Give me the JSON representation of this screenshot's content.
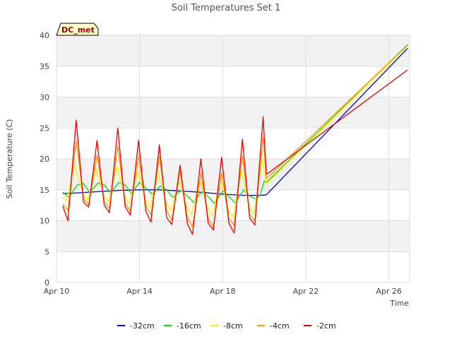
{
  "chart_data": {
    "type": "line",
    "title": "Soil Temperatures Set 1",
    "xlabel": "Time",
    "ylabel": "Soil Temperature (C)",
    "site_label": "DC_met",
    "xlim": [
      0,
      17
    ],
    "ylim": [
      0,
      40
    ],
    "x_unit": "days since Apr 10",
    "x_ticks": [
      {
        "value": 0,
        "label": "Apr 10"
      },
      {
        "value": 4,
        "label": "Apr 14"
      },
      {
        "value": 8,
        "label": "Apr 18"
      },
      {
        "value": 12,
        "label": "Apr 22"
      },
      {
        "value": 16,
        "label": "Apr 26"
      }
    ],
    "y_ticks": [
      0,
      5,
      10,
      15,
      20,
      25,
      30,
      35,
      40
    ],
    "legend_position": "bottom-center",
    "grid": true,
    "series": [
      {
        "name": "-32cm",
        "color": "#0000cc",
        "x": [
          0.3,
          1.0,
          2.0,
          3.0,
          4.0,
          5.0,
          6.0,
          7.0,
          8.0,
          9.0,
          9.8,
          10.1,
          16.9
        ],
        "y": [
          14.4,
          14.5,
          14.7,
          14.9,
          15.0,
          15.0,
          14.8,
          14.6,
          14.3,
          14.1,
          14.1,
          14.2,
          37.9
        ]
      },
      {
        "name": "-16cm",
        "color": "#00dd00",
        "x": [
          0.3,
          0.6,
          1.0,
          1.3,
          1.6,
          2.0,
          2.3,
          2.6,
          3.0,
          3.3,
          3.6,
          4.0,
          4.3,
          4.6,
          5.0,
          5.3,
          5.6,
          6.0,
          6.3,
          6.6,
          7.0,
          7.3,
          7.6,
          8.0,
          8.3,
          8.6,
          9.0,
          9.3,
          9.6,
          9.8,
          10.0,
          10.1,
          16.9
        ],
        "y": [
          14.6,
          13.8,
          15.8,
          16.0,
          14.6,
          16.1,
          15.8,
          14.5,
          16.2,
          15.8,
          14.4,
          16.2,
          15.3,
          14.3,
          15.6,
          15.0,
          13.8,
          14.9,
          14.0,
          13.0,
          14.7,
          13.9,
          12.8,
          14.8,
          13.9,
          12.9,
          15.0,
          14.0,
          13.5,
          14.2,
          16.4,
          16.2,
          38.5
        ]
      },
      {
        "name": "-8cm",
        "color": "#ffee00",
        "x": [
          0.3,
          0.5,
          0.85,
          1.3,
          1.5,
          1.9,
          2.3,
          2.5,
          2.9,
          3.3,
          3.5,
          3.9,
          4.3,
          4.5,
          4.9,
          5.3,
          5.5,
          5.9,
          6.3,
          6.5,
          6.9,
          7.3,
          7.5,
          7.9,
          8.3,
          8.5,
          8.9,
          9.3,
          9.5,
          9.9,
          10.1,
          16.9
        ],
        "y": [
          13.8,
          13.2,
          19.0,
          14.3,
          13.3,
          18.3,
          14.0,
          13.0,
          18.8,
          13.8,
          12.8,
          18.0,
          13.4,
          12.3,
          17.6,
          12.8,
          11.6,
          16.4,
          12.0,
          11.0,
          16.6,
          11.8,
          10.8,
          16.8,
          11.6,
          10.6,
          18.2,
          12.0,
          11.0,
          20.0,
          16.0,
          38.4
        ]
      },
      {
        "name": "-4cm",
        "color": "#ff9900",
        "x": [
          0.3,
          0.55,
          0.95,
          1.3,
          1.55,
          1.95,
          2.3,
          2.55,
          2.95,
          3.3,
          3.55,
          3.95,
          4.3,
          4.55,
          4.95,
          5.3,
          5.55,
          5.95,
          6.3,
          6.55,
          6.95,
          7.3,
          7.55,
          7.95,
          8.3,
          8.55,
          8.95,
          9.3,
          9.55,
          9.95,
          10.1,
          16.9
        ],
        "y": [
          12.7,
          11.6,
          23.0,
          13.6,
          12.6,
          20.6,
          13.1,
          12.0,
          22.0,
          13.0,
          11.5,
          20.5,
          12.5,
          10.9,
          20.5,
          11.6,
          10.1,
          18.0,
          10.6,
          9.0,
          17.6,
          10.4,
          9.0,
          17.8,
          10.4,
          9.3,
          20.6,
          11.0,
          10.0,
          23.5,
          16.8,
          38.4
        ]
      },
      {
        "name": "-2cm",
        "color": "#ee0000",
        "x": [
          0.3,
          0.55,
          0.95,
          1.3,
          1.55,
          1.95,
          2.3,
          2.55,
          2.95,
          3.3,
          3.55,
          3.95,
          4.3,
          4.55,
          4.95,
          5.3,
          5.55,
          5.95,
          6.3,
          6.55,
          6.95,
          7.3,
          7.55,
          7.95,
          8.3,
          8.55,
          8.95,
          9.3,
          9.55,
          9.95,
          10.1,
          16.9
        ],
        "y": [
          12.4,
          10.0,
          26.3,
          13.0,
          12.2,
          23.0,
          12.5,
          11.3,
          25.0,
          12.3,
          10.9,
          23.0,
          11.5,
          9.8,
          22.3,
          10.5,
          9.4,
          19.0,
          9.5,
          7.8,
          20.0,
          9.6,
          8.5,
          20.3,
          9.6,
          8.0,
          23.2,
          10.4,
          9.3,
          26.8,
          17.5,
          34.4
        ]
      }
    ]
  }
}
